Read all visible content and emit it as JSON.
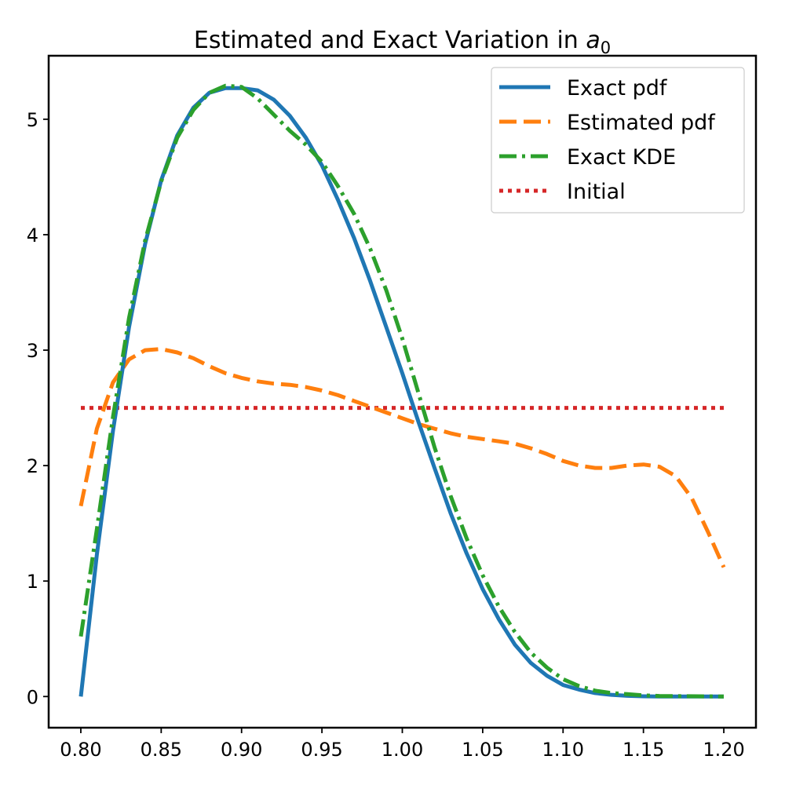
{
  "chart_data": {
    "type": "line",
    "title": "Estimated and Exact Variation in ",
    "title_math_symbol": "a",
    "title_math_subscript": "0",
    "xlabel": "",
    "ylabel": "",
    "xlim": [
      0.78,
      1.22
    ],
    "ylim": [
      -0.27,
      5.55
    ],
    "x_ticks": [
      0.8,
      0.85,
      0.9,
      0.95,
      1.0,
      1.05,
      1.1,
      1.15,
      1.2
    ],
    "x_tick_labels": [
      "0.80",
      "0.85",
      "0.90",
      "0.95",
      "1.00",
      "1.05",
      "1.10",
      "1.15",
      "1.20"
    ],
    "y_ticks": [
      0,
      1,
      2,
      3,
      4,
      5
    ],
    "y_tick_labels": [
      "0",
      "1",
      "2",
      "3",
      "4",
      "5"
    ],
    "grid": false,
    "legend_position": "top-right",
    "series": [
      {
        "name": "Exact pdf",
        "color": "#1f77b4",
        "style": "solid",
        "points": [
          [
            0.8,
            0.0
          ],
          [
            0.81,
            1.23
          ],
          [
            0.82,
            2.3
          ],
          [
            0.83,
            3.2
          ],
          [
            0.84,
            3.92
          ],
          [
            0.85,
            4.47
          ],
          [
            0.86,
            4.86
          ],
          [
            0.87,
            5.1
          ],
          [
            0.88,
            5.23
          ],
          [
            0.89,
            5.27
          ],
          [
            0.9,
            5.27
          ],
          [
            0.91,
            5.25
          ],
          [
            0.92,
            5.17
          ],
          [
            0.93,
            5.03
          ],
          [
            0.94,
            4.84
          ],
          [
            0.95,
            4.6
          ],
          [
            0.96,
            4.3
          ],
          [
            0.97,
            3.97
          ],
          [
            0.98,
            3.6
          ],
          [
            0.99,
            3.2
          ],
          [
            1.0,
            2.8
          ],
          [
            1.01,
            2.38
          ],
          [
            1.02,
            1.98
          ],
          [
            1.03,
            1.59
          ],
          [
            1.04,
            1.24
          ],
          [
            1.05,
            0.93
          ],
          [
            1.06,
            0.67
          ],
          [
            1.07,
            0.45
          ],
          [
            1.08,
            0.29
          ],
          [
            1.09,
            0.18
          ],
          [
            1.1,
            0.1
          ],
          [
            1.11,
            0.06
          ],
          [
            1.12,
            0.03
          ],
          [
            1.13,
            0.015
          ],
          [
            1.14,
            0.006
          ],
          [
            1.15,
            0.002
          ],
          [
            1.16,
            0.0
          ],
          [
            1.2,
            0.0
          ]
        ]
      },
      {
        "name": "Estimated pdf",
        "color": "#ff7f0e",
        "style": "dashed",
        "points": [
          [
            0.8,
            1.65
          ],
          [
            0.81,
            2.32
          ],
          [
            0.82,
            2.72
          ],
          [
            0.83,
            2.92
          ],
          [
            0.84,
            3.0
          ],
          [
            0.85,
            3.01
          ],
          [
            0.86,
            2.98
          ],
          [
            0.87,
            2.93
          ],
          [
            0.88,
            2.86
          ],
          [
            0.89,
            2.8
          ],
          [
            0.9,
            2.76
          ],
          [
            0.91,
            2.73
          ],
          [
            0.92,
            2.71
          ],
          [
            0.93,
            2.7
          ],
          [
            0.94,
            2.68
          ],
          [
            0.95,
            2.65
          ],
          [
            0.96,
            2.61
          ],
          [
            0.97,
            2.56
          ],
          [
            0.98,
            2.51
          ],
          [
            0.99,
            2.46
          ],
          [
            1.0,
            2.41
          ],
          [
            1.01,
            2.36
          ],
          [
            1.02,
            2.32
          ],
          [
            1.03,
            2.28
          ],
          [
            1.04,
            2.25
          ],
          [
            1.05,
            2.23
          ],
          [
            1.06,
            2.21
          ],
          [
            1.07,
            2.19
          ],
          [
            1.08,
            2.15
          ],
          [
            1.09,
            2.1
          ],
          [
            1.1,
            2.04
          ],
          [
            1.11,
            2.0
          ],
          [
            1.12,
            1.98
          ],
          [
            1.13,
            1.98
          ],
          [
            1.14,
            2.0
          ],
          [
            1.15,
            2.01
          ],
          [
            1.16,
            1.99
          ],
          [
            1.17,
            1.91
          ],
          [
            1.18,
            1.72
          ],
          [
            1.19,
            1.43
          ],
          [
            1.2,
            1.12
          ]
        ]
      },
      {
        "name": "Exact KDE",
        "color": "#2ca02c",
        "style": "dashdot",
        "points": [
          [
            0.8,
            0.52
          ],
          [
            0.81,
            1.45
          ],
          [
            0.82,
            2.42
          ],
          [
            0.83,
            3.28
          ],
          [
            0.84,
            3.95
          ],
          [
            0.85,
            4.46
          ],
          [
            0.86,
            4.84
          ],
          [
            0.87,
            5.08
          ],
          [
            0.88,
            5.23
          ],
          [
            0.89,
            5.29
          ],
          [
            0.9,
            5.28
          ],
          [
            0.91,
            5.18
          ],
          [
            0.92,
            5.04
          ],
          [
            0.93,
            4.9
          ],
          [
            0.94,
            4.78
          ],
          [
            0.95,
            4.63
          ],
          [
            0.96,
            4.42
          ],
          [
            0.97,
            4.18
          ],
          [
            0.98,
            3.88
          ],
          [
            0.99,
            3.52
          ],
          [
            1.0,
            3.1
          ],
          [
            1.01,
            2.63
          ],
          [
            1.02,
            2.16
          ],
          [
            1.03,
            1.74
          ],
          [
            1.04,
            1.37
          ],
          [
            1.05,
            1.05
          ],
          [
            1.06,
            0.78
          ],
          [
            1.07,
            0.56
          ],
          [
            1.08,
            0.38
          ],
          [
            1.09,
            0.25
          ],
          [
            1.1,
            0.15
          ],
          [
            1.11,
            0.09
          ],
          [
            1.12,
            0.05
          ],
          [
            1.13,
            0.03
          ],
          [
            1.14,
            0.02
          ],
          [
            1.15,
            0.01
          ],
          [
            1.16,
            0.005
          ],
          [
            1.2,
            0.0
          ]
        ]
      },
      {
        "name": "Initial",
        "color": "#d62728",
        "style": "dotted",
        "points": [
          [
            0.8,
            2.5
          ],
          [
            1.2,
            2.5
          ]
        ]
      }
    ]
  }
}
